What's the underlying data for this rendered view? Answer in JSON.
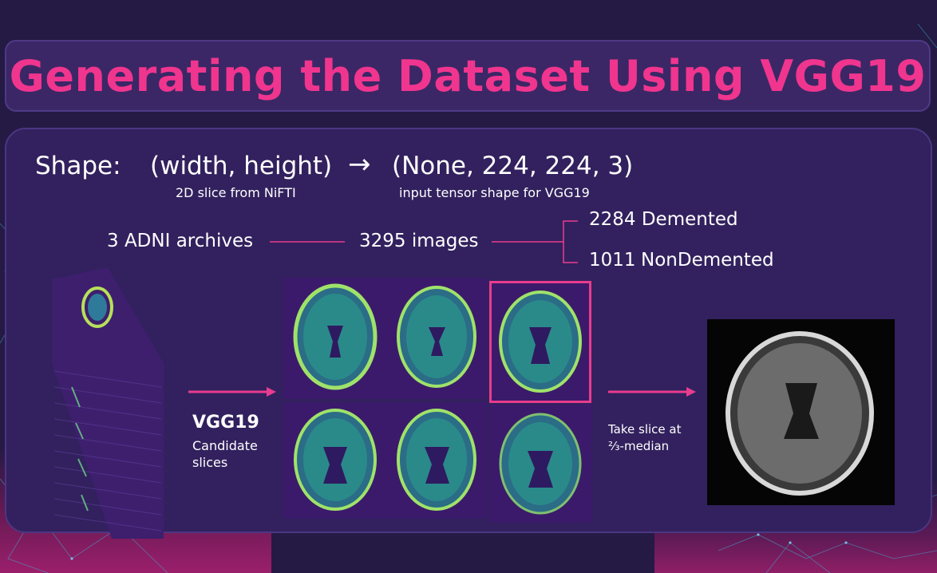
{
  "title": "Generating the Dataset Using VGG19",
  "shape": {
    "label": "Shape:",
    "from": "(width, height)",
    "arrow": "→",
    "to": "(None, 224, 224, 3)",
    "from_note": "2D slice from NiFTI",
    "to_note": "input tensor shape for VGG19"
  },
  "flow": {
    "archives": "3 ADNI archives",
    "images": "3295 images",
    "demented": "2284 Demented",
    "nondemented_count": "1011",
    "nondemented_label": "NonDemented"
  },
  "vgg": {
    "title": "VGG19",
    "subtitle_line1": "Candidate",
    "subtitle_line2": "slices"
  },
  "take": {
    "line1": "Take slice at",
    "line2": "⅔-median"
  },
  "colors": {
    "accent": "#f0358e",
    "panel": "#32215e",
    "title_bar": "#3b2766",
    "background": "#241a44"
  }
}
